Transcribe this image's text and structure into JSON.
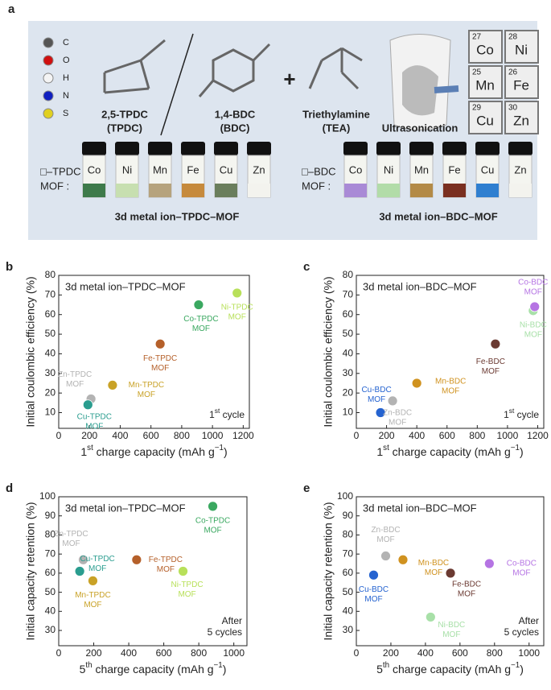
{
  "panel_a": {
    "label": "a",
    "atoms": [
      "C",
      "O",
      "H",
      "N",
      "S"
    ],
    "molecules": [
      [
        "2,5-TPDC",
        "(TPDC)"
      ],
      [
        "1,4-BDC",
        "(BDC)"
      ],
      [
        "Triethylamine",
        "(TEA)"
      ]
    ],
    "plus": "+",
    "process": "Ultrasonication",
    "elements": [
      [
        "27",
        "Co"
      ],
      [
        "28",
        "Ni"
      ],
      [
        "25",
        "Mn"
      ],
      [
        "26",
        "Fe"
      ],
      [
        "29",
        "Cu"
      ],
      [
        "30",
        "Zn"
      ]
    ],
    "groups": [
      {
        "prefix": [
          "□–TPDC",
          "MOF :"
        ],
        "vials": [
          "Co",
          "Ni",
          "Mn",
          "Fe",
          "Cu",
          "Zn"
        ],
        "caption": "3d metal ion–TPDC–MOF"
      },
      {
        "prefix": [
          "□–BDC",
          "MOF :"
        ],
        "vials": [
          "Co",
          "Ni",
          "Mn",
          "Fe",
          "Cu",
          "Zn"
        ],
        "caption": "3d metal ion–BDC–MOF"
      }
    ]
  },
  "chart_data": [
    {
      "type": "scatter",
      "panel": "b",
      "title": "3d metal ion–TPDC–MOF",
      "note": [
        "1",
        "st",
        " cycle"
      ],
      "x_label": [
        "1",
        "st",
        " charge capacity (mAh g",
        "−1",
        ")"
      ],
      "y_label": "Initial coulombic efficiency (%)",
      "labels": [
        [
          "Zn-TPDC",
          "MOF"
        ],
        [
          "Cu-TPDC",
          "MOF"
        ],
        [
          "Mn-TPDC",
          "MOF"
        ],
        [
          "Fe-TPDC",
          "MOF"
        ],
        [
          "Co-TPDC",
          "MOF"
        ],
        [
          "Ni-TPDC",
          "MOF"
        ]
      ],
      "x": [
        210,
        190,
        350,
        660,
        910,
        1160
      ],
      "y": [
        17,
        14,
        24,
        45,
        65,
        71
      ],
      "colors": [
        "#b3b3b3",
        "#2a9d8f",
        "#c9a227",
        "#b5602a",
        "#3aa860",
        "#b8e05a"
      ],
      "xlim": [
        0,
        1240
      ],
      "xticks": [
        0,
        200,
        400,
        600,
        800,
        1000,
        1200
      ],
      "ylim": [
        2,
        80
      ],
      "yticks": [
        10,
        20,
        30,
        40,
        50,
        60,
        70,
        80
      ]
    },
    {
      "type": "scatter",
      "panel": "c",
      "title": "3d metal ion–BDC–MOF",
      "note": [
        "1",
        "st",
        " cycle"
      ],
      "x_label": [
        "1",
        "st",
        " charge capacity (mAh g",
        "−1",
        ")"
      ],
      "y_label": "Initial coulombic efficiency (%)",
      "labels": [
        [
          "Cu-BDC",
          "MOF"
        ],
        [
          "Zn-BDC",
          "MOF"
        ],
        [
          "Mn-BDC",
          "MOF"
        ],
        [
          "Fe-BDC",
          "MOF"
        ],
        [
          "Ni-BDC",
          "MOF"
        ],
        [
          "Co-BDC",
          "MOF"
        ]
      ],
      "x": [
        160,
        240,
        400,
        920,
        1170,
        1180
      ],
      "y": [
        10,
        16,
        25,
        45,
        62,
        64
      ],
      "colors": [
        "#2563d0",
        "#b3b3b3",
        "#d0921f",
        "#6b3a32",
        "#a8e0a8",
        "#b574e3"
      ],
      "xlim": [
        0,
        1240
      ],
      "xticks": [
        0,
        200,
        400,
        600,
        800,
        1000,
        1200
      ],
      "ylim": [
        2,
        80
      ],
      "yticks": [
        10,
        20,
        30,
        40,
        50,
        60,
        70,
        80
      ]
    },
    {
      "type": "scatter",
      "panel": "d",
      "title": "3d metal ion–TPDC–MOF",
      "note": [
        "After",
        "5 cycles"
      ],
      "x_label": [
        "5",
        "th",
        " charge capacity (mAh g",
        "−1",
        ")"
      ],
      "y_label": "Initial capacity retention (%)",
      "labels": [
        [
          "Zn-TPDC",
          "MOF"
        ],
        [
          "Cu-TPDC",
          "MOF"
        ],
        [
          "Mn-TPDC",
          "MOF"
        ],
        [
          "Fe-TPDC",
          "MOF"
        ],
        [
          "Ni-TPDC",
          "MOF"
        ],
        [
          "Co-TPDC",
          "MOF"
        ]
      ],
      "x": [
        140,
        120,
        195,
        445,
        710,
        880
      ],
      "y": [
        67,
        61,
        56,
        67,
        61,
        95
      ],
      "colors": [
        "#b3b3b3",
        "#2a9d8f",
        "#c9a227",
        "#b5602a",
        "#b8e05a",
        "#3aa860"
      ],
      "xlim": [
        0,
        1075
      ],
      "xticks": [
        0,
        200,
        400,
        600,
        800,
        1000
      ],
      "ylim": [
        22,
        100
      ],
      "yticks": [
        30,
        40,
        50,
        60,
        70,
        80,
        90,
        100
      ]
    },
    {
      "type": "scatter",
      "panel": "e",
      "title": "3d metal ion–BDC–MOF",
      "note": [
        "After",
        "5 cycles"
      ],
      "x_label": [
        "5",
        "th",
        " charge capacity (mAh g",
        "−1",
        ")"
      ],
      "y_label": "Initial capacity retention (%)",
      "labels": [
        [
          "Cu-BDC",
          "MOF"
        ],
        [
          "Zn-BDC",
          "MOF"
        ],
        [
          "Mn-BDC",
          "MOF"
        ],
        [
          "Fe-BDC",
          "MOF"
        ],
        [
          "Co-BDC",
          "MOF"
        ],
        [
          "Ni-BDC",
          "MOF"
        ]
      ],
      "x": [
        100,
        170,
        270,
        545,
        770,
        430
      ],
      "y": [
        59,
        69,
        67,
        60,
        65,
        37
      ],
      "colors": [
        "#2563d0",
        "#b3b3b3",
        "#d0921f",
        "#6b3a32",
        "#b574e3",
        "#a8e0a8"
      ],
      "xlim": [
        0,
        1085
      ],
      "xticks": [
        0,
        200,
        400,
        600,
        800,
        1000
      ],
      "ylim": [
        22,
        100
      ],
      "yticks": [
        30,
        40,
        50,
        60,
        70,
        80,
        90,
        100
      ]
    }
  ]
}
